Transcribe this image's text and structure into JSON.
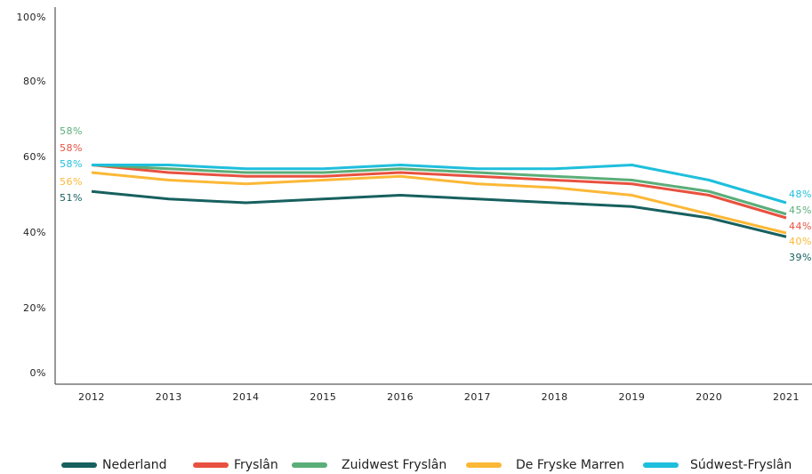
{
  "chart_data": {
    "type": "line",
    "categories": [
      "2012",
      "2013",
      "2014",
      "2015",
      "2016",
      "2017",
      "2018",
      "2019",
      "2020",
      "2021"
    ],
    "ylim": [
      0,
      100
    ],
    "yticks": [
      {
        "value": 0,
        "label": "0%"
      },
      {
        "value": 20,
        "label": "20%"
      },
      {
        "value": 40,
        "label": "40%"
      },
      {
        "value": 60,
        "label": "60%"
      },
      {
        "value": 80,
        "label": "80%"
      },
      {
        "value": 100,
        "label": "100%"
      }
    ],
    "grid": false,
    "legend": "bottom",
    "series": [
      {
        "name": "Nederland",
        "color": "#17605f",
        "values": [
          51,
          49,
          48,
          49,
          50,
          49,
          48,
          47,
          44,
          39
        ],
        "value_labels": [
          "51%",
          null,
          null,
          null,
          null,
          null,
          null,
          null,
          null,
          "39%"
        ]
      },
      {
        "name": "Fryslân",
        "color": "#e8513f",
        "values": [
          58,
          56,
          55,
          55,
          56,
          55,
          54,
          53,
          50,
          44
        ],
        "value_labels": [
          "58%",
          null,
          null,
          null,
          null,
          null,
          null,
          null,
          null,
          "44%"
        ]
      },
      {
        "name": "Zuidwest Fryslân",
        "color": "#5aae78",
        "values": [
          58,
          57,
          56,
          56,
          57,
          56,
          55,
          54,
          51,
          45
        ],
        "value_labels": [
          "58%",
          null,
          null,
          null,
          null,
          null,
          null,
          null,
          null,
          "45%"
        ]
      },
      {
        "name": "De Fryske Marren",
        "color": "#fbb836",
        "values": [
          56,
          54,
          53,
          54,
          55,
          53,
          52,
          50,
          45,
          40
        ],
        "value_labels": [
          "56%",
          null,
          null,
          null,
          null,
          null,
          null,
          null,
          null,
          "40%"
        ]
      },
      {
        "name": "Súdwest-Fryslân",
        "color": "#1ebfdc",
        "values": [
          58,
          58,
          57,
          57,
          58,
          57,
          57,
          58,
          54,
          48
        ],
        "value_labels": [
          "58%",
          null,
          null,
          null,
          null,
          null,
          null,
          null,
          null,
          "48%"
        ]
      }
    ]
  }
}
